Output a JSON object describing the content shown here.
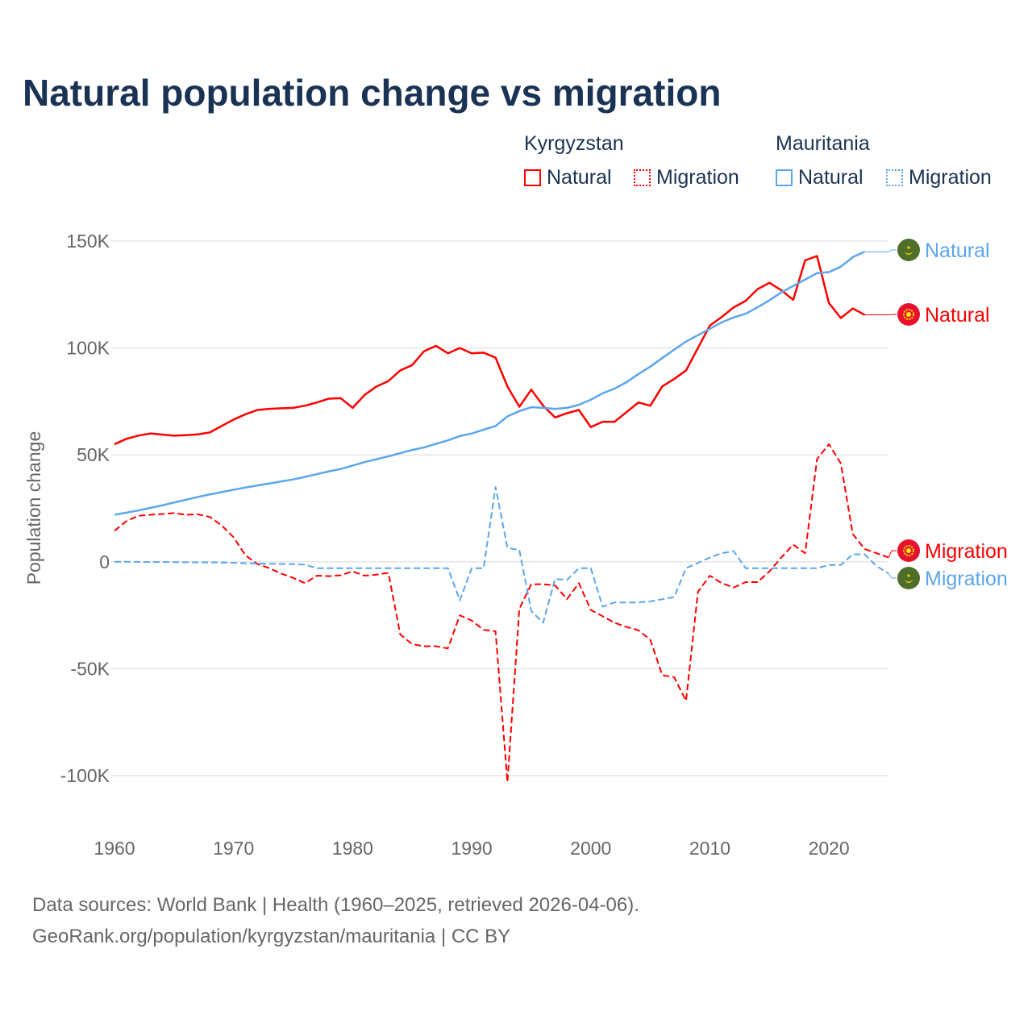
{
  "chart_data": {
    "type": "line",
    "title": "Natural population change vs migration",
    "xlabel": "",
    "ylabel": "Population change",
    "xlim": [
      1960,
      2025
    ],
    "ylim": [
      -100000,
      150000
    ],
    "x_ticks": [
      "1960",
      "1970",
      "1980",
      "1990",
      "2000",
      "2010",
      "2020"
    ],
    "y_ticks": [
      {
        "v": 150000,
        "label": "150K"
      },
      {
        "v": 100000,
        "label": "100K"
      },
      {
        "v": 50000,
        "label": "50K"
      },
      {
        "v": 0,
        "label": "0"
      },
      {
        "v": -50000,
        "label": "-50K"
      },
      {
        "v": -100000,
        "label": "-100K"
      }
    ],
    "grid": true,
    "legend": {
      "groups": [
        {
          "title": "Kyrgyzstan",
          "items": [
            "Natural",
            "Migration"
          ]
        },
        {
          "title": "Mauritania",
          "items": [
            "Natural",
            "Migration"
          ]
        }
      ],
      "placement": "top-right"
    },
    "series": [
      {
        "name": "Kyrgyzstan Natural",
        "country": "Kyrgyzstan",
        "kind": "Natural",
        "end_label": "Natural",
        "color": "#ff0000",
        "dash": false,
        "flag": "kyrgyzstan",
        "start_year": 1960,
        "values": [
          55000,
          57500,
          59000,
          60000,
          59500,
          59000,
          59200,
          59600,
          60500,
          63500,
          66500,
          69000,
          71000,
          71500,
          71800,
          72000,
          73000,
          74500,
          76300,
          76500,
          72000,
          78000,
          82000,
          84500,
          89500,
          92000,
          98500,
          101000,
          97500,
          100000,
          97500,
          97800,
          95500,
          82000,
          72500,
          80500,
          73000,
          67500,
          69500,
          71000,
          63000,
          65500,
          65500,
          70000,
          74500,
          73000,
          82000,
          85500,
          89500,
          100000,
          110500,
          114500,
          119000,
          122000,
          127500,
          130500,
          127000,
          122500,
          141000,
          143000,
          121000,
          114000,
          118500,
          115500
        ]
      },
      {
        "name": "Kyrgyzstan Migration",
        "country": "Kyrgyzstan",
        "kind": "Migration",
        "end_label": "Migration",
        "color": "#ff0000",
        "dash": true,
        "flag": "kyrgyzstan",
        "start_year": 1960,
        "values": [
          14500,
          19000,
          21500,
          22000,
          22300,
          22800,
          22000,
          22200,
          21000,
          17000,
          11500,
          3000,
          -1000,
          -3000,
          -5500,
          -7500,
          -10000,
          -6500,
          -6700,
          -6300,
          -4500,
          -6500,
          -6000,
          -5200,
          -34000,
          -38500,
          -39500,
          -39500,
          -40500,
          -25000,
          -27500,
          -31800,
          -32500,
          -103000,
          -22000,
          -10500,
          -10500,
          -11000,
          -17500,
          -10000,
          -22500,
          -25500,
          -28500,
          -30500,
          -32000,
          -36500,
          -53000,
          -54000,
          -65000,
          -14000,
          -6500,
          -10000,
          -12000,
          -9500,
          -9500,
          -4500,
          2000,
          8000,
          4000,
          48000,
          55000,
          46000,
          13000,
          6000,
          4000,
          2000
        ]
      },
      {
        "name": "Mauritania Natural",
        "country": "Mauritania",
        "kind": "Natural",
        "end_label": "Natural",
        "color": "#5ba6ec",
        "dash": false,
        "flag": "mauritania",
        "start_year": 1960,
        "values": [
          22000,
          23000,
          24000,
          25200,
          26400,
          27700,
          29000,
          30300,
          31500,
          32600,
          33700,
          34700,
          35700,
          36600,
          37600,
          38500,
          39700,
          41000,
          42300,
          43400,
          45000,
          46600,
          48000,
          49300,
          50800,
          52300,
          53500,
          55200,
          56800,
          58800,
          60000,
          61800,
          63500,
          68000,
          70500,
          72300,
          72000,
          71500,
          72000,
          73400,
          75800,
          78800,
          81000,
          84000,
          87800,
          91300,
          95300,
          99200,
          103000,
          106000,
          109000,
          112000,
          114300,
          116000,
          119000,
          122300,
          126000,
          129000,
          132000,
          135000,
          135500,
          138000,
          142500,
          145000
        ]
      },
      {
        "name": "Mauritania Migration",
        "country": "Mauritania",
        "kind": "Migration",
        "end_label": "Migration",
        "color": "#5ba6ec",
        "dash": true,
        "flag": "mauritania",
        "start_year": 1960,
        "values": [
          0,
          0,
          -50,
          -100,
          -100,
          -150,
          -200,
          -250,
          -300,
          -350,
          -500,
          -700,
          -800,
          -900,
          -1000,
          -1100,
          -1300,
          -3000,
          -3000,
          -3000,
          -3000,
          -3000,
          -3000,
          -3000,
          -3000,
          -3000,
          -3000,
          -3000,
          -3000,
          -18000,
          -3000,
          -3000,
          35000,
          6500,
          5500,
          -23000,
          -28500,
          -8000,
          -8500,
          -3000,
          -3000,
          -21000,
          -19000,
          -19000,
          -19000,
          -18500,
          -17500,
          -16500,
          -3000,
          -500,
          2000,
          4000,
          5000,
          -3000,
          -3000,
          -3000,
          -3000,
          -3000,
          -3000,
          -3000,
          -1500,
          -1500,
          3500,
          3500,
          -2000,
          -5500
        ]
      }
    ]
  },
  "footer": {
    "line1": "Data sources: World Bank | Health (1960–2025, retrieved 2026-04-06).",
    "line2": "GeoRank.org/population/kyrgyzstan/mauritania | CC BY"
  }
}
